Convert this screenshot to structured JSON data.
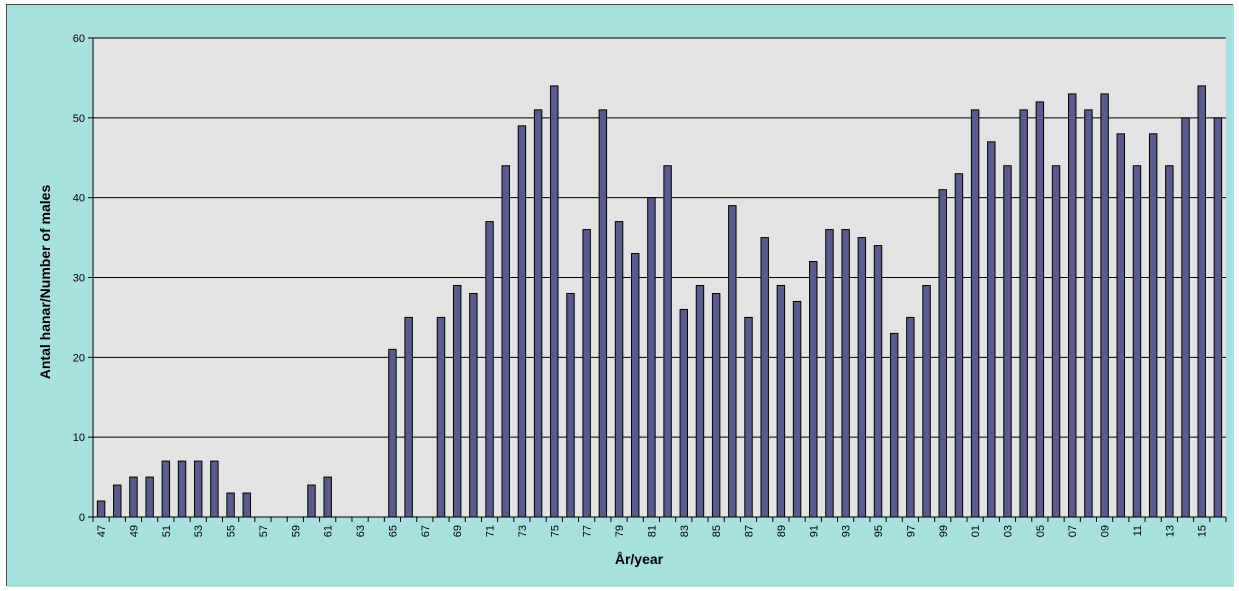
{
  "colors": {
    "chart_area": "#A8E0E0",
    "plot_area": "#E3E3E3",
    "bar_fill": "#5C5A8C",
    "bar_stroke": "#000000",
    "gridline": "#000000"
  },
  "chart_data": {
    "type": "bar",
    "xlabel": "År/year",
    "ylabel": "Antal hanar/Number of males",
    "ylim": [
      0,
      60
    ],
    "yticks": [
      0,
      10,
      20,
      30,
      40,
      50,
      60
    ],
    "grid": true,
    "legend": "none",
    "categories": [
      "47",
      "48",
      "49",
      "50",
      "51",
      "52",
      "53",
      "54",
      "55",
      "56",
      "57",
      "58",
      "59",
      "60",
      "61",
      "62",
      "63",
      "64",
      "65",
      "66",
      "67",
      "68",
      "69",
      "70",
      "71",
      "72",
      "73",
      "74",
      "75",
      "76",
      "77",
      "78",
      "79",
      "80",
      "81",
      "82",
      "83",
      "84",
      "85",
      "86",
      "87",
      "88",
      "89",
      "90",
      "91",
      "92",
      "93",
      "94",
      "95",
      "96",
      "97",
      "98",
      "99",
      "00",
      "01",
      "02",
      "03",
      "04",
      "05",
      "06",
      "07",
      "08",
      "09",
      "10",
      "11",
      "12",
      "13",
      "14",
      "15",
      "16"
    ],
    "tick_labels": [
      "47",
      "49",
      "51",
      "53",
      "55",
      "57",
      "59",
      "61",
      "63",
      "65",
      "67",
      "69",
      "71",
      "73",
      "75",
      "77",
      "79",
      "81",
      "83",
      "85",
      "87",
      "89",
      "91",
      "93",
      "95",
      "97",
      "99",
      "01",
      "03",
      "05",
      "07",
      "09",
      "11",
      "13",
      "15"
    ],
    "values": [
      2,
      4,
      5,
      5,
      7,
      7,
      7,
      7,
      3,
      3,
      0,
      0,
      0,
      4,
      5,
      0,
      0,
      0,
      21,
      25,
      0,
      25,
      29,
      28,
      37,
      44,
      49,
      51,
      54,
      28,
      36,
      51,
      37,
      33,
      40,
      44,
      26,
      29,
      28,
      39,
      25,
      35,
      29,
      27,
      32,
      36,
      36,
      35,
      34,
      23,
      25,
      29,
      41,
      43,
      51,
      47,
      44,
      51,
      52,
      44,
      53,
      51,
      53,
      48,
      44,
      48,
      44,
      50,
      54,
      50
    ]
  }
}
